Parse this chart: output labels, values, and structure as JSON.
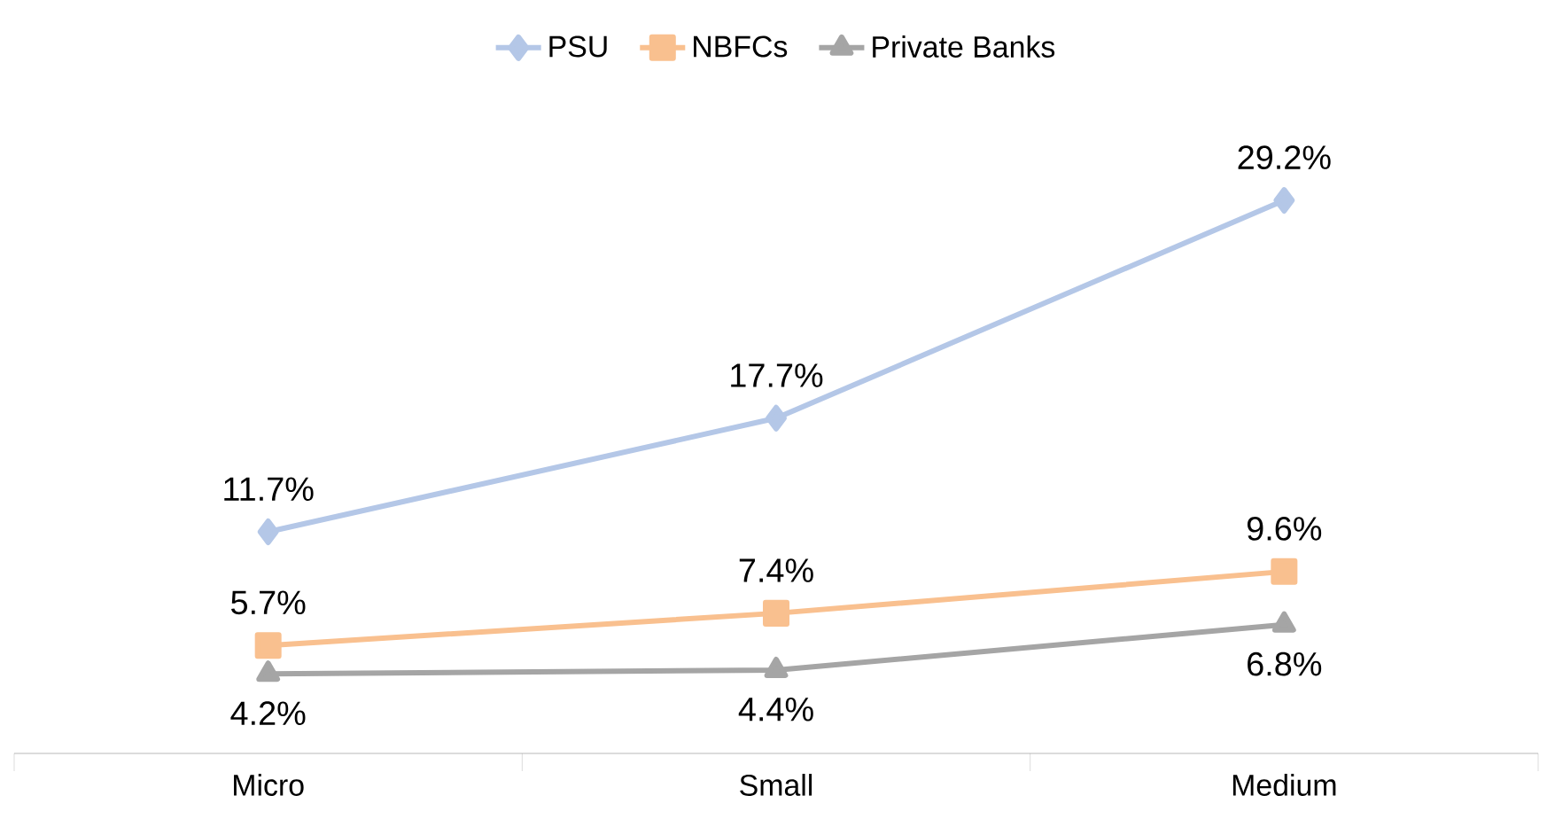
{
  "chart_data": {
    "type": "line",
    "categories": [
      "Micro",
      "Small",
      "Medium"
    ],
    "legend": "top",
    "grid": false,
    "series": [
      {
        "name": "PSU",
        "color": "#b4c7e7",
        "marker": "diamond",
        "values": [
          11.7,
          17.7,
          29.2
        ],
        "value_labels": [
          "11.7%",
          "17.7%",
          "29.2%"
        ]
      },
      {
        "name": "NBFCs",
        "color": "#f9c08f",
        "marker": "square",
        "values": [
          5.7,
          7.4,
          9.6
        ],
        "value_labels": [
          "5.7%",
          "7.4%",
          "9.6%"
        ]
      },
      {
        "name": "Private Banks",
        "color": "#a5a5a5",
        "marker": "triangle",
        "values": [
          4.2,
          4.4,
          6.8
        ],
        "value_labels": [
          "4.2%",
          "4.4%",
          "6.8%"
        ]
      }
    ]
  }
}
